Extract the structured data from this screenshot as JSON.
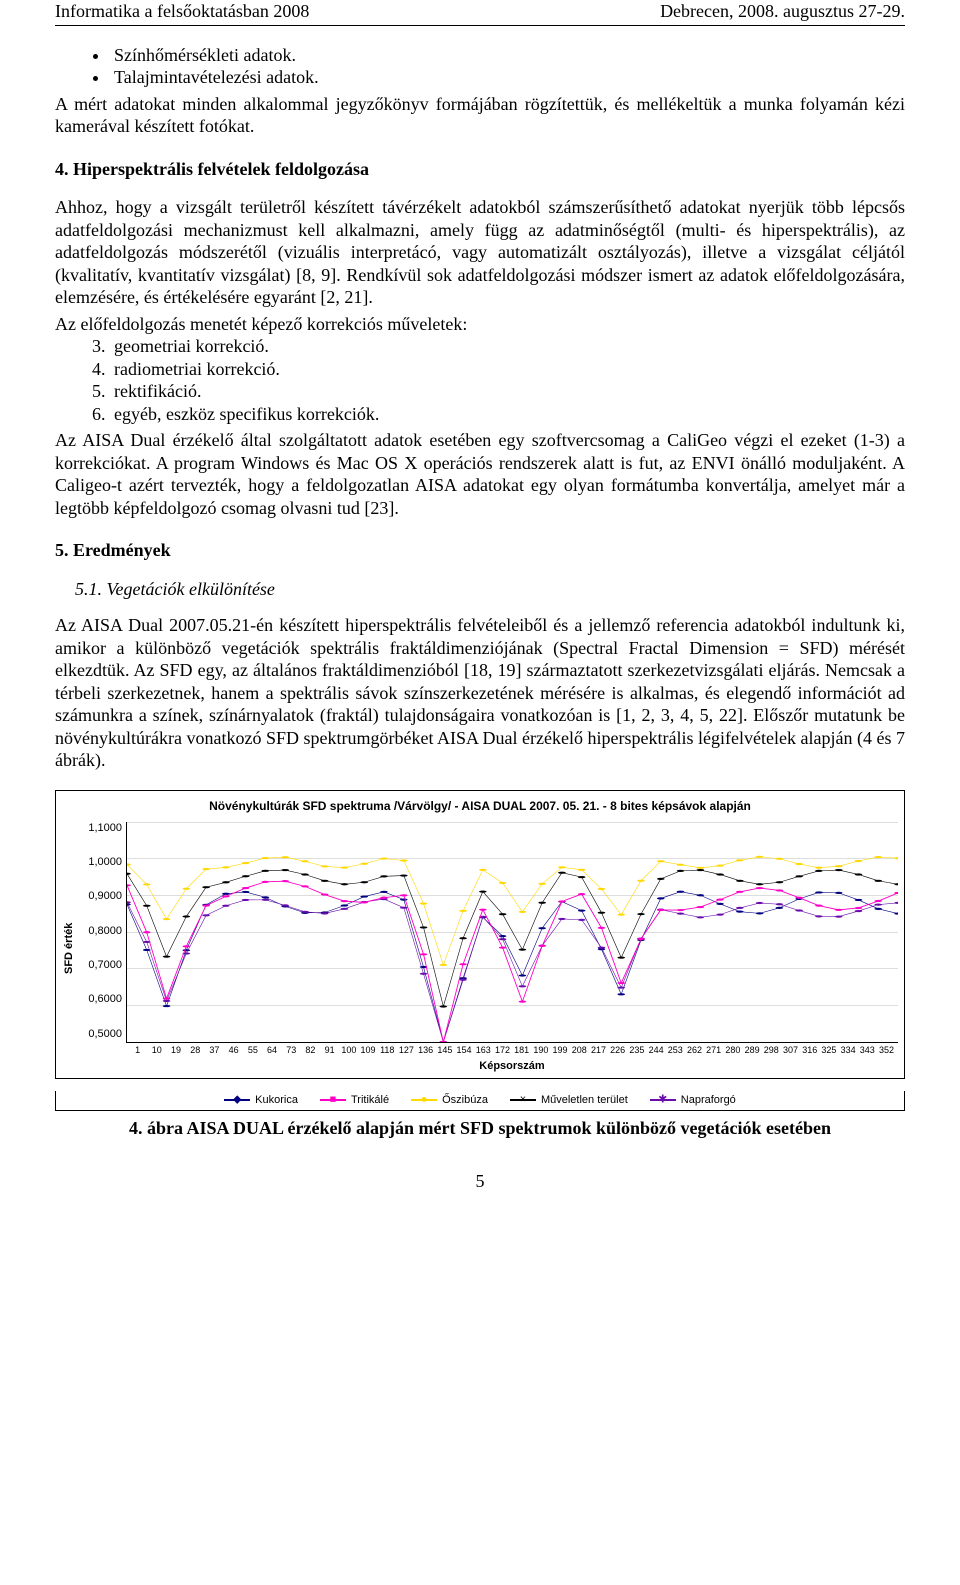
{
  "header": {
    "left": "Informatika a felsőoktatásban 2008",
    "right": "Debrecen, 2008. augusztus 27-29."
  },
  "bullets": [
    "Színhőmérsékleti adatok.",
    "Talajmintavételezési adatok."
  ],
  "para_after_bullets": "A mért adatokat minden alkalommal jegyzőkönyv formájában rögzítettük, és mellékeltük a munka folyamán kézi kamerával készített fotókat.",
  "sec4_title": "4.   Hiperspektrális felvételek feldolgozása",
  "sec4_para1": "Ahhoz, hogy a vizsgált területről készített távérzékelt adatokból számszerűsíthető adatokat nyerjük több lépcsős adatfeldolgozási mechanizmust kell alkalmazni, amely függ az adatminőségtől (multi- és hiperspektrális), az adatfeldolgozás módszerétől (vizuális interpretácó, vagy automatizált osztályozás), illetve a vizsgálat céljától (kvalitatív, kvantitatív vizsgálat) [8, 9]. Rendkívül sok adatfeldolgozási módszer ismert az adatok előfeldolgozására, elemzésére, és értékelésére egyaránt [2, 21].",
  "sec4_line2": "Az előfeldolgozás menetét képező korrekciós műveletek:",
  "sec4_list": [
    "geometriai korrekció.",
    "radiometriai korrekció.",
    "rektifikáció.",
    "egyéb, eszköz specifikus korrekciók."
  ],
  "sec4_para2": "Az AISA Dual érzékelő által szolgáltatott adatok esetében egy szoftvercsomag a CaliGeo végzi el ezeket (1-3) a korrekciókat. A program Windows és Mac OS X operációs rendszerek alatt is fut, az ENVI önálló moduljaként. A Caligeo-t azért tervezték, hogy a feldolgozatlan AISA adatokat egy olyan formátumba konvertálja, amelyet már a legtöbb képfeldolgozó csomag olvasni tud [23].",
  "sec5_title": "5.   Eredmények",
  "sub51_title": "5.1.   Vegetációk elkülönítése",
  "sec5_para": "Az AISA Dual 2007.05.21-én készített hiperspektrális felvételeiből és a jellemző referencia adatokból indultunk ki, amikor a különböző vegetációk spektrális fraktáldimenziójának (Spectral Fractal Dimension = SFD) mérését elkezdtük. Az SFD egy, az általános fraktáldimenzióból [18, 19] származtatott szerkezetvizsgálati eljárás. Nemcsak a térbeli szerkezetnek, hanem a spektrális sávok színszerkezetének mérésére is alkalmas, és elegendő információt ad számunkra a színek, színárnyalatok (fraktál) tulajdonságaira vonatkozóan is [1, 2, 3, 4, 5, 22]. Előszőr mutatunk be növénykultúrákra vonatkozó SFD spektrumgörbéket AISA Dual érzékelő hiperspektrális légifelvételek alapján (4 és 7 ábrák).",
  "chart": {
    "type": "line",
    "title": "Növénykultúrák SFD spektruma /Várvölgy/ - AISA DUAL 2007. 05. 21. - 8 bites képsávok alapján",
    "ylabel": "SFD érték",
    "xlabel": "Képsorszám",
    "ylim": [
      0.5,
      1.1
    ],
    "ytick_step": 0.1,
    "yticks": [
      "1,1000",
      "1,0000",
      "0,9000",
      "0,8000",
      "0,7000",
      "0,6000",
      "0,5000"
    ],
    "xticks": [
      "1",
      "10",
      "19",
      "28",
      "37",
      "46",
      "55",
      "64",
      "73",
      "82",
      "91",
      "100",
      "109",
      "118",
      "127",
      "136",
      "145",
      "154",
      "163",
      "172",
      "181",
      "190",
      "199",
      "208",
      "217",
      "226",
      "235",
      "244",
      "253",
      "262",
      "271",
      "280",
      "289",
      "298",
      "307",
      "316",
      "325",
      "334",
      "343",
      "352"
    ],
    "grid_color": "#dddddd",
    "background_color": "#ffffff",
    "series": [
      {
        "name": "Kukorica",
        "color": "#000080",
        "marker": "◆",
        "line_width": 1
      },
      {
        "name": "Tritikálé",
        "color": "#ff00c8",
        "marker": "■",
        "line_width": 1.5
      },
      {
        "name": "Őszibúza",
        "color": "#ffd800",
        "marker": "●",
        "line_width": 1
      },
      {
        "name": "Műveletlen terület",
        "color": "#000000",
        "marker": "×",
        "line_width": 1
      },
      {
        "name": "Napraforgó",
        "color": "#6a0dad",
        "marker": "✱",
        "line_width": 1
      }
    ]
  },
  "fig_caption": "4. ábra AISA DUAL érzékelő alapján mért SFD spektrumok különböző vegetációk esetében",
  "page_number": "5"
}
